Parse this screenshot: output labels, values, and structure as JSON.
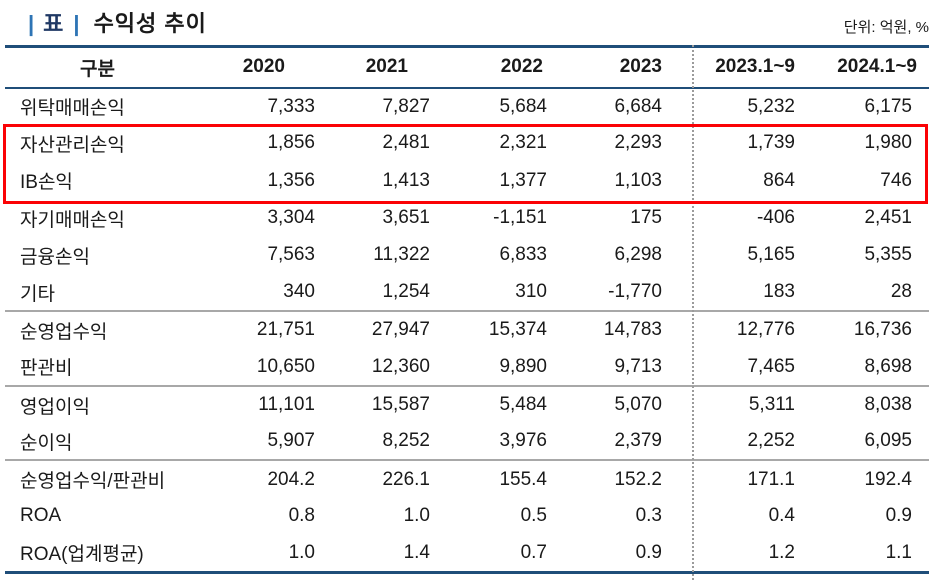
{
  "title": {
    "marker": "표",
    "text": "수익성 추이",
    "unit_label": "단위: 억원, %"
  },
  "colors": {
    "line_navy": "#1f4e79",
    "line_gray": "#a8a8a8",
    "highlight_red": "#fb0205",
    "marker_blue": "#2e74b5",
    "marker_navy": "#1f3864"
  },
  "table": {
    "columns": [
      "구분",
      "2020",
      "2021",
      "2022",
      "2023",
      "2023.1~9",
      "2024.1~9"
    ],
    "rows": [
      {
        "label": "위탁매매손익",
        "values": [
          "7,333",
          "7,827",
          "5,684",
          "6,684",
          "5,232",
          "6,175"
        ]
      },
      {
        "label": "자산관리손익",
        "values": [
          "1,856",
          "2,481",
          "2,321",
          "2,293",
          "1,739",
          "1,980"
        ],
        "highlighted": true
      },
      {
        "label": "IB손익",
        "values": [
          "1,356",
          "1,413",
          "1,377",
          "1,103",
          "864",
          "746"
        ],
        "highlighted": true
      },
      {
        "label": "자기매매손익",
        "values": [
          "3,304",
          "3,651",
          "-1,151",
          "175",
          "-406",
          "2,451"
        ]
      },
      {
        "label": "금융손익",
        "values": [
          "7,563",
          "11,322",
          "6,833",
          "6,298",
          "5,165",
          "5,355"
        ]
      },
      {
        "label": "기타",
        "values": [
          "340",
          "1,254",
          "310",
          "-1,770",
          "183",
          "28"
        ],
        "section_end": true
      },
      {
        "label": "순영업수익",
        "values": [
          "21,751",
          "27,947",
          "15,374",
          "14,783",
          "12,776",
          "16,736"
        ]
      },
      {
        "label": "판관비",
        "values": [
          "10,650",
          "12,360",
          "9,890",
          "9,713",
          "7,465",
          "8,698"
        ],
        "section_end": true
      },
      {
        "label": "영업이익",
        "values": [
          "11,101",
          "15,587",
          "5,484",
          "5,070",
          "5,311",
          "8,038"
        ]
      },
      {
        "label": "순이익",
        "values": [
          "5,907",
          "8,252",
          "3,976",
          "2,379",
          "2,252",
          "6,095"
        ],
        "section_end": true
      },
      {
        "label": "순영업수익/판관비",
        "values": [
          "204.2",
          "226.1",
          "155.4",
          "152.2",
          "171.1",
          "192.4"
        ]
      },
      {
        "label": "ROA",
        "values": [
          "0.8",
          "1.0",
          "0.5",
          "0.3",
          "0.4",
          "0.9"
        ]
      },
      {
        "label": "ROA(업계평균)",
        "values": [
          "1.0",
          "1.4",
          "0.7",
          "0.9",
          "1.2",
          "1.1"
        ]
      }
    ]
  }
}
